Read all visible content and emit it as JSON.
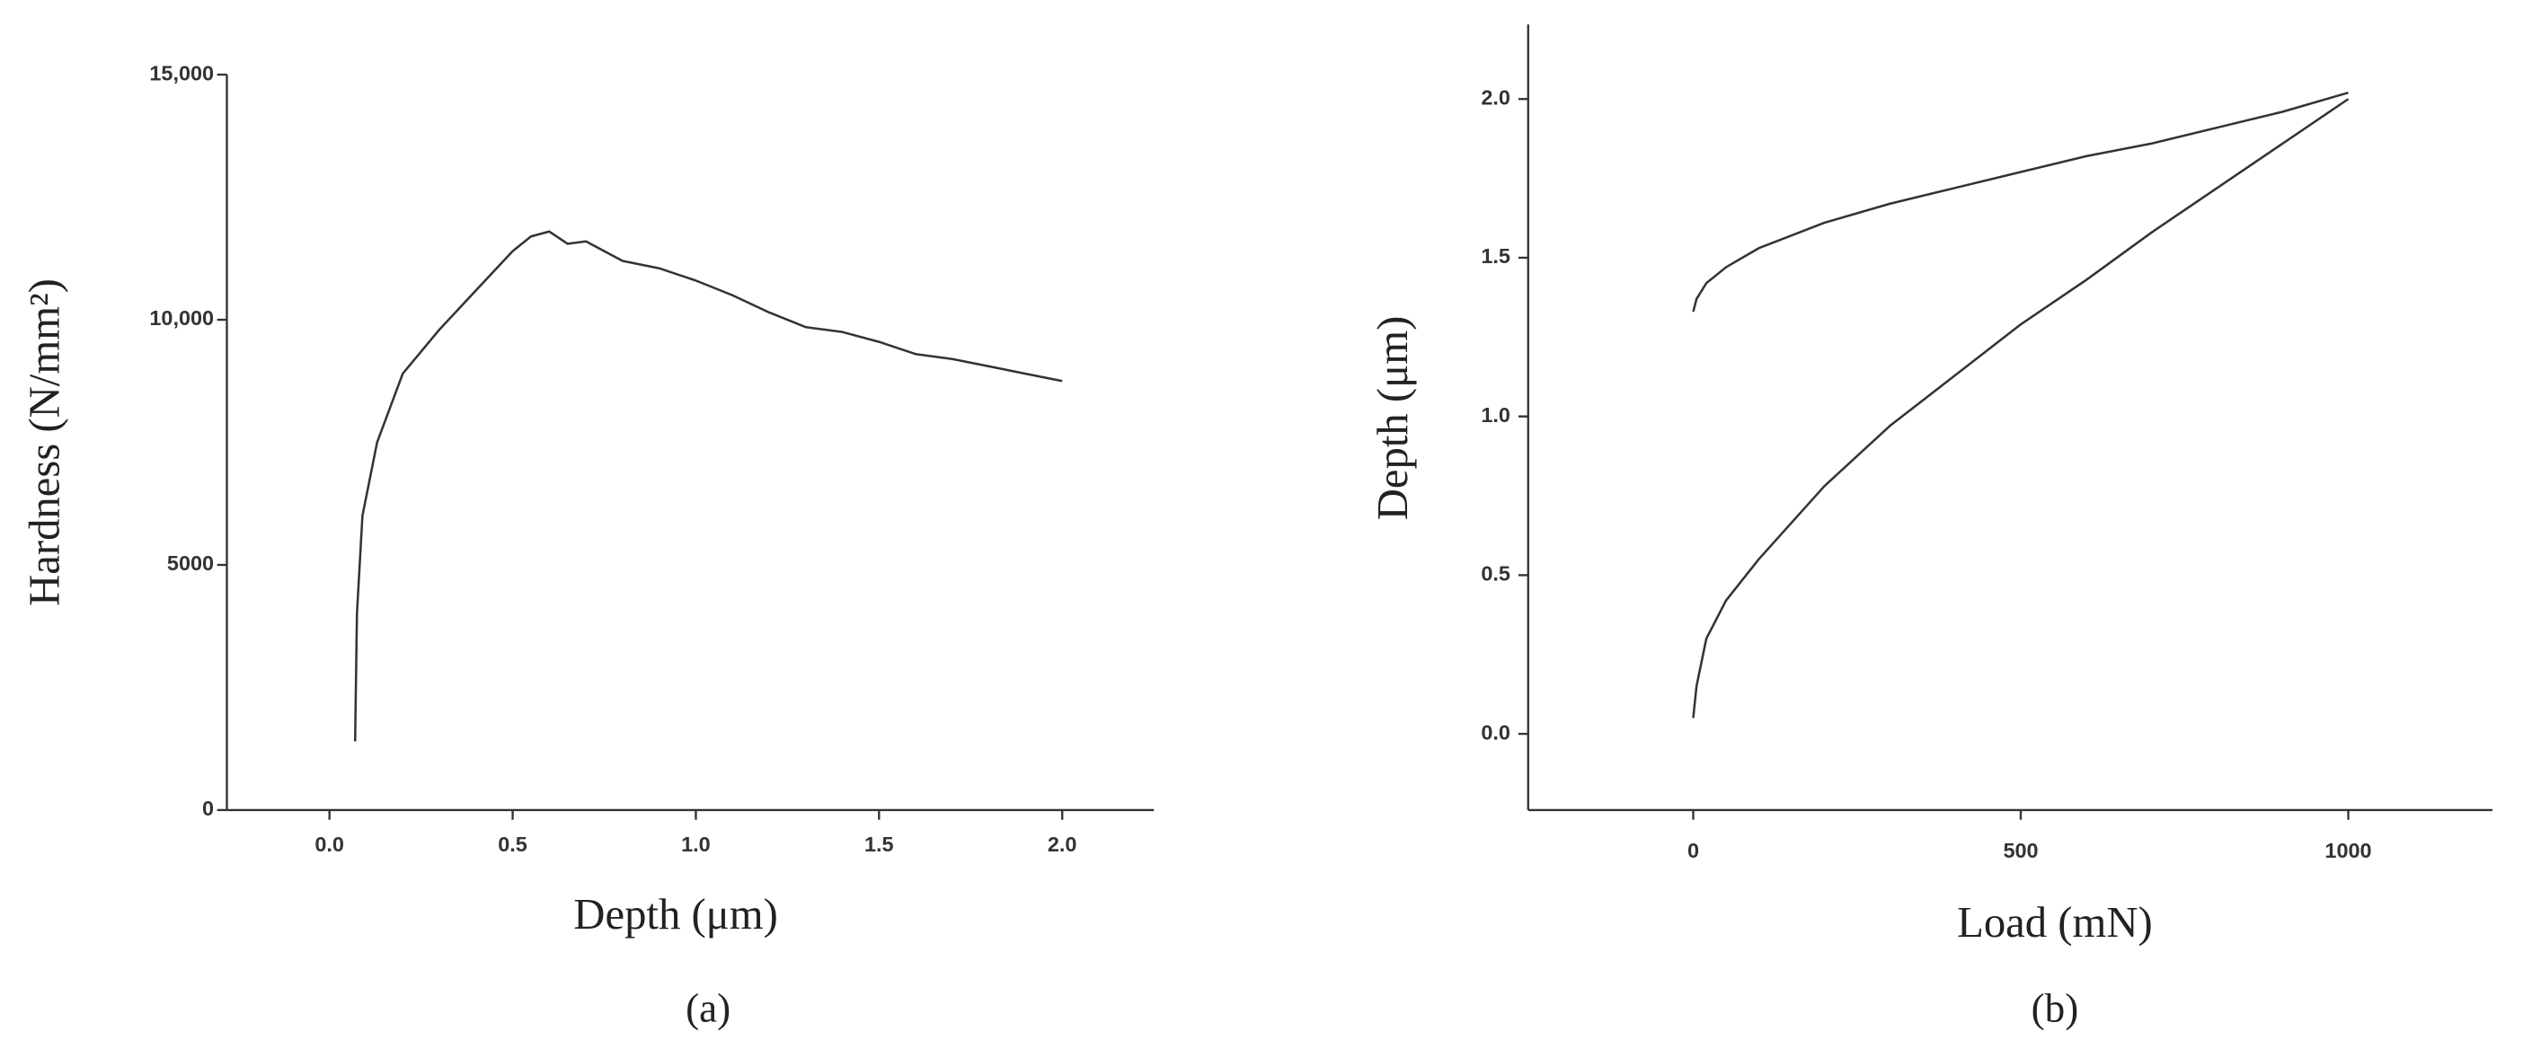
{
  "chart_data": [
    {
      "type": "line",
      "x_label": "Depth (μm)",
      "y_label": "Hardness (N/mm²)",
      "caption": "(a)",
      "xlim": [
        -0.28,
        2.25
      ],
      "xticks": [
        {
          "value": 0,
          "label": "0.0"
        },
        0.5,
        {
          "value": 1,
          "label": "1.0"
        },
        1.5,
        {
          "value": 2,
          "label": "2.0"
        }
      ],
      "ylim": [
        0,
        15000
      ],
      "yticks": [
        0,
        5000,
        {
          "value": 10000,
          "label": "10,000"
        },
        {
          "value": 15000,
          "label": "15,000"
        }
      ],
      "series": [
        {
          "color": "#333333",
          "x": [
            0.07,
            0.075,
            0.09,
            0.13,
            0.2,
            0.3,
            0.4,
            0.5,
            0.55,
            0.6,
            0.65,
            0.7,
            0.8,
            0.9,
            1.0,
            1.1,
            1.2,
            1.3,
            1.4,
            1.5,
            1.6,
            1.7,
            1.8,
            1.9,
            2.0
          ],
          "values": [
            1400,
            4000,
            6000,
            7500,
            8900,
            9800,
            10600,
            11400,
            11700,
            11800,
            11550,
            11600,
            11200,
            11050,
            10800,
            10500,
            10150,
            9850,
            9750,
            9550,
            9300,
            9200,
            9050,
            8900,
            8750
          ]
        }
      ]
    },
    {
      "type": "line",
      "x_label": "Load (mN)",
      "y_label": "Depth (μm)",
      "caption": "(b)",
      "xlim": [
        -252,
        1220
      ],
      "xticks": [
        0,
        500,
        1000
      ],
      "ylim": [
        -0.24,
        2.235
      ],
      "yticks": [
        {
          "value": 0,
          "label": "0.0"
        },
        0.5,
        {
          "value": 1,
          "label": "1.0"
        },
        1.5,
        {
          "value": 2,
          "label": "2.0"
        }
      ],
      "series": [
        {
          "color": "#333333",
          "x": [
            0,
            5,
            20,
            50,
            100,
            200,
            300,
            400,
            500,
            600,
            700,
            800,
            900,
            1000
          ],
          "values": [
            0.05,
            0.15,
            0.3,
            0.42,
            0.55,
            0.78,
            0.97,
            1.13,
            1.29,
            1.43,
            1.58,
            1.72,
            1.86,
            2.0
          ]
        },
        {
          "color": "#333333",
          "x": [
            1000,
            900,
            800,
            700,
            600,
            500,
            400,
            300,
            200,
            100,
            50,
            20,
            5,
            0
          ],
          "values": [
            2.02,
            1.96,
            1.91,
            1.86,
            1.82,
            1.77,
            1.72,
            1.67,
            1.61,
            1.53,
            1.47,
            1.42,
            1.37,
            1.33
          ]
        }
      ]
    }
  ]
}
